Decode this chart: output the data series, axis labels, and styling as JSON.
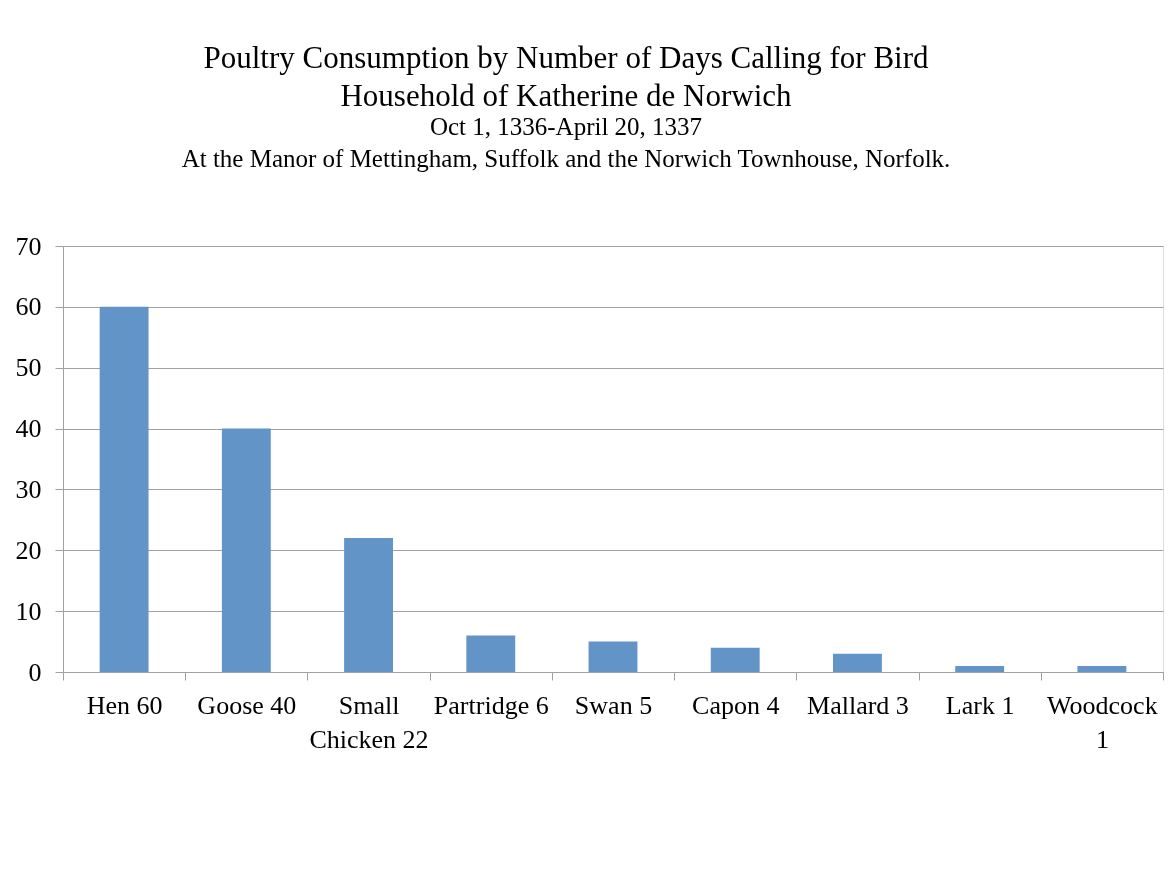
{
  "chart_data": {
    "type": "bar",
    "title": "Poultry Consumption by Number of Days Calling for Bird\nHousehold of Katherine de Norwich",
    "subtitle": "Oct 1, 1336-April 20, 1337\nAt the Manor of Mettingham, Suffolk and the Norwich Townhouse, Norfolk.",
    "categories": [
      "Hen 60",
      "Goose 40",
      "Small Chicken 22",
      "Partridge 6",
      "Swan 5",
      "Capon 4",
      "Mallard 3",
      "Lark 1",
      "Woodcock 1"
    ],
    "values": [
      60,
      40,
      22,
      6,
      5,
      4,
      3,
      1,
      1
    ],
    "color": "#6294c8",
    "ylim": [
      0,
      70
    ],
    "yticks": [
      0,
      10,
      20,
      30,
      40,
      50,
      60,
      70
    ],
    "grid": "y"
  }
}
